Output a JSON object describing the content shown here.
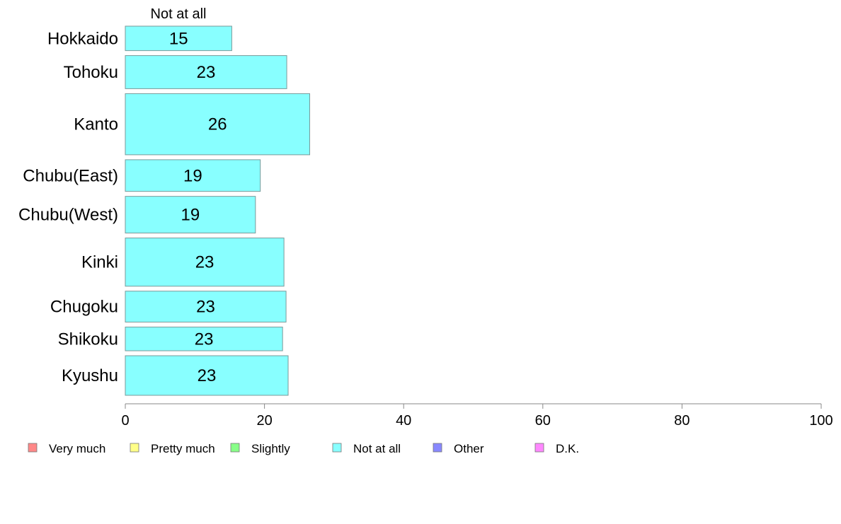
{
  "chart_data": {
    "type": "bar",
    "orientation": "horizontal",
    "stacked": true,
    "categories": [
      "Hokkaido",
      "Tohoku",
      "Kanto",
      "Chubu(East)",
      "Chubu(West)",
      "Kinki",
      "Chugoku",
      "Shikoku",
      "Kyushu"
    ],
    "category_weights": [
      34,
      46,
      85,
      44,
      51,
      67,
      43,
      33,
      55
    ],
    "series": [
      {
        "name": "Not at all",
        "values": [
          15.3,
          23.2,
          26.5,
          19.4,
          18.7,
          22.8,
          23.1,
          22.6,
          23.4
        ],
        "labels": [
          "15",
          "23",
          "26",
          "19",
          "19",
          "23",
          "23",
          "23",
          "23"
        ],
        "color": "#88ffff"
      }
    ],
    "series_header": "Not at all",
    "xlim": [
      0,
      100
    ],
    "xticks": [
      0,
      20,
      40,
      60,
      80,
      100
    ],
    "xtick_labels": [
      "0",
      "20",
      "40",
      "60",
      "80",
      "100"
    ],
    "grid": false,
    "legend_position": "bottom",
    "legend": [
      {
        "label": "Very much",
        "color": "#ff8888"
      },
      {
        "label": "Pretty much",
        "color": "#ffff88"
      },
      {
        "label": "Slightly",
        "color": "#88ff88"
      },
      {
        "label": "Not at all",
        "color": "#88ffff"
      },
      {
        "label": "Other",
        "color": "#8888ff"
      },
      {
        "label": "D.K.",
        "color": "#ff88ff"
      }
    ]
  }
}
